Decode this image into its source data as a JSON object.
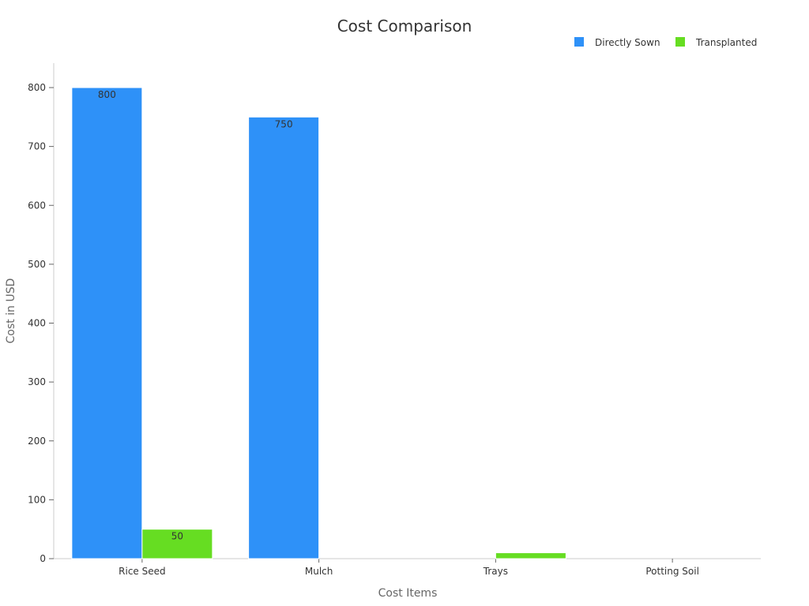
{
  "chart_data": {
    "type": "bar",
    "title": "Cost Comparison",
    "xlabel": "Cost Items",
    "ylabel": "Cost in USD",
    "categories": [
      "Rice Seed",
      "Mulch",
      "Trays",
      "Potting Soil"
    ],
    "series": [
      {
        "name": "Directly Sown",
        "color": "#2E91F8",
        "values": [
          800,
          750,
          0,
          0
        ],
        "labels": [
          "800",
          "750",
          "",
          ""
        ]
      },
      {
        "name": "Transplanted",
        "color": "#66DD22",
        "values": [
          50,
          0,
          10,
          0
        ],
        "labels": [
          "50",
          "",
          "",
          ""
        ]
      }
    ],
    "ylim": [
      0,
      840
    ],
    "yticks": [
      0,
      100,
      200,
      300,
      400,
      500,
      600,
      700,
      800
    ],
    "grid": false,
    "legend_position": "top-right"
  }
}
